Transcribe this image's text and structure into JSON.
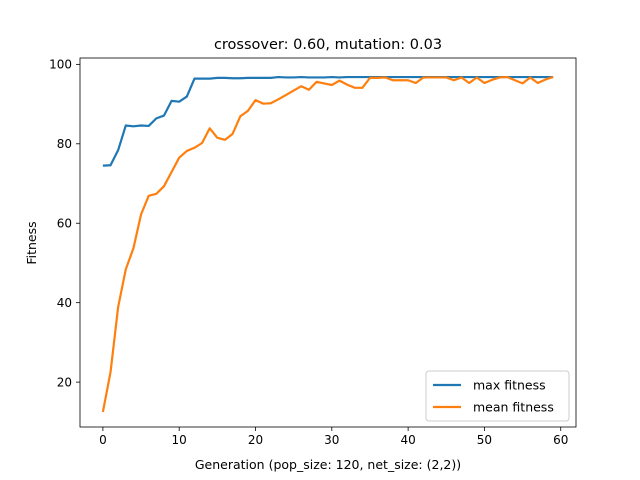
{
  "chart_data": {
    "type": "line",
    "title": "crossover: 0.60, mutation: 0.03",
    "xlabel": "Generation (pop_size: 120, net_size: (2,2))",
    "ylabel": "Fitness",
    "xlim": [
      -3,
      62
    ],
    "ylim": [
      8.7,
      101.6
    ],
    "xticks": [
      0,
      10,
      20,
      30,
      40,
      50,
      60
    ],
    "yticks": [
      20,
      40,
      60,
      80,
      100
    ],
    "legend_position": "lower-right",
    "grid": false,
    "x": [
      0,
      1,
      2,
      3,
      4,
      5,
      6,
      7,
      8,
      9,
      10,
      11,
      12,
      13,
      14,
      15,
      16,
      17,
      18,
      19,
      20,
      21,
      22,
      23,
      24,
      25,
      26,
      27,
      28,
      29,
      30,
      31,
      32,
      33,
      34,
      35,
      36,
      37,
      38,
      39,
      40,
      41,
      42,
      43,
      44,
      45,
      46,
      47,
      48,
      49,
      50,
      51,
      52,
      53,
      54,
      55,
      56,
      57,
      58,
      59
    ],
    "series": [
      {
        "name": "max fitness",
        "color": "#1f77b4",
        "values": [
          74.5,
          74.6,
          78.4,
          84.6,
          84.4,
          84.6,
          84.5,
          86.4,
          87.1,
          90.8,
          90.6,
          91.9,
          96.4,
          96.4,
          96.4,
          96.6,
          96.6,
          96.5,
          96.5,
          96.6,
          96.6,
          96.6,
          96.6,
          96.8,
          96.7,
          96.7,
          96.8,
          96.7,
          96.7,
          96.7,
          96.8,
          96.7,
          96.8,
          96.8,
          96.8,
          96.8,
          96.8,
          96.8,
          96.8,
          96.8,
          96.8,
          96.8,
          96.8,
          96.8,
          96.8,
          96.8,
          96.8,
          96.8,
          96.8,
          96.8,
          96.8,
          96.8,
          96.8,
          96.8,
          96.8,
          96.8,
          96.8,
          96.8,
          96.8,
          96.8
        ]
      },
      {
        "name": "mean fitness",
        "color": "#ff7f0e",
        "values": [
          12.5,
          22.5,
          38.9,
          48.4,
          53.7,
          62.2,
          66.9,
          67.4,
          69.3,
          72.9,
          76.5,
          78.2,
          79.0,
          80.2,
          83.9,
          81.5,
          81.0,
          82.5,
          86.9,
          88.3,
          91.0,
          90.1,
          90.2,
          91.2,
          92.3,
          93.4,
          94.5,
          93.6,
          95.6,
          95.2,
          94.8,
          95.9,
          94.9,
          94.1,
          94.1,
          96.6,
          96.6,
          96.7,
          96.0,
          96.0,
          96.0,
          95.3,
          96.7,
          96.7,
          96.7,
          96.7,
          96.0,
          96.7,
          95.3,
          96.7,
          95.3,
          96.1,
          96.7,
          96.8,
          96.0,
          95.2,
          96.7,
          95.3,
          96.2,
          96.8
        ]
      }
    ]
  }
}
